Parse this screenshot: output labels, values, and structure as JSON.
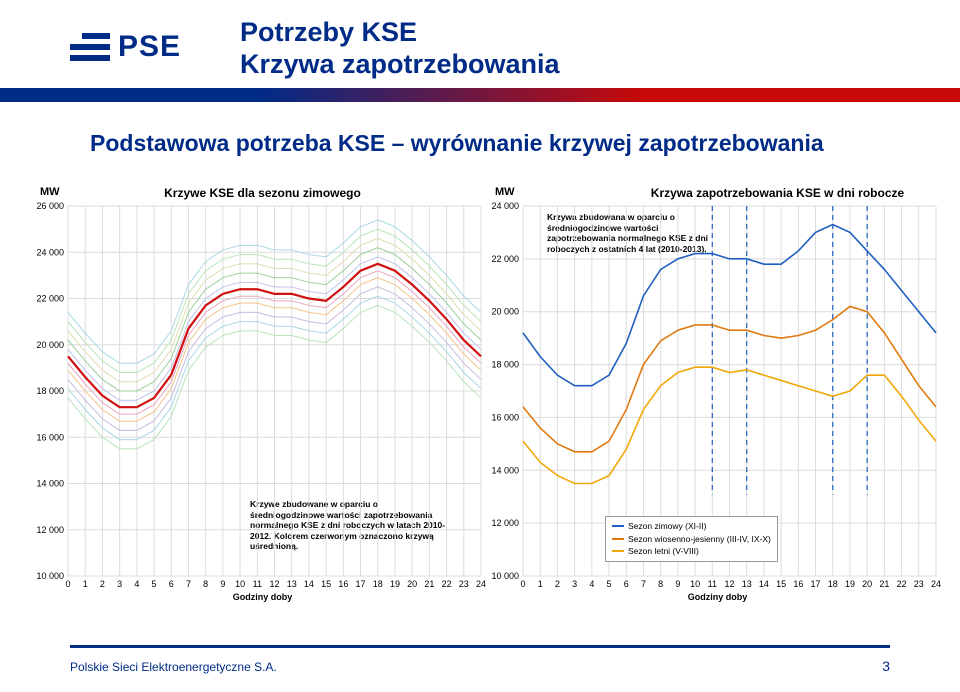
{
  "logo_text": "PSE",
  "title_line1": "Potrzeby KSE",
  "title_line2": "Krzywa zapotrzebowania",
  "subtitle": "Podstawowa potrzeba KSE – wyrównanie krzywej zapotrzebowania",
  "footer": "Polskie Sieci Elektroenergetyczne S.A.",
  "page": "3",
  "axis_label": "Godziny doby",
  "mw_label": "MW",
  "chart_left": {
    "title": "Krzywe KSE dla sezonu zimowego",
    "note": "Krzywe zbudowane w oparciu o średniogodzinowe wartości zapotrzebowania normalnego KSE z dni roboczych w latach 2010-2012.\nKolorem czerwonym oznaczono krzywą uśrednioną.",
    "type": "line",
    "ylim": [
      10000,
      26000
    ],
    "ytick_step": 2000,
    "xlim": [
      0,
      24
    ],
    "xtick_step": 1,
    "grid_color": "#dcdcdc",
    "background": "#ffffff",
    "avg_color": "#d01010",
    "avg_width": 2.2,
    "band_colors": [
      "#b9e3bb",
      "#a8d8e2",
      "#c8bbe0",
      "#f4c58a",
      "#e8a6c0",
      "#bfc3e8",
      "#9bcf9b",
      "#e0ddaf"
    ],
    "band_width": 1.0,
    "avg_series": {
      "x": [
        0,
        1,
        2,
        3,
        4,
        5,
        6,
        7,
        8,
        9,
        10,
        11,
        12,
        13,
        14,
        15,
        16,
        17,
        18,
        19,
        20,
        21,
        22,
        23,
        24
      ],
      "y": [
        19500,
        18600,
        17800,
        17300,
        17300,
        17700,
        18700,
        20700,
        21700,
        22200,
        22400,
        22400,
        22200,
        22200,
        22000,
        21900,
        22500,
        23200,
        23500,
        23200,
        22600,
        21900,
        21100,
        20200,
        19500
      ]
    },
    "band_offsets": [
      -1800,
      -1400,
      -1000,
      -600,
      -300,
      300,
      700,
      1100,
      1500,
      1900
    ]
  },
  "chart_right": {
    "title": "Krzywa zapotrzebowania KSE w dni robocze",
    "note": "Krzywa zbudowana w oparciu o średniogodzinowe wartości zapotrzebowania normalnego KSE z dni roboczych z ostatnich 4 lat (2010-2013).",
    "type": "line",
    "ylim": [
      10000,
      24000
    ],
    "ytick_step": 2000,
    "xlim": [
      0,
      24
    ],
    "xtick_step": 1,
    "grid_color": "#dcdcdc",
    "background": "#ffffff",
    "dash_hours": [
      11,
      13,
      18,
      20
    ],
    "dash_color": "#2060c0",
    "series": [
      {
        "name": "Sezon zimowy (XI-II)",
        "color": "#2060c0",
        "width": 1.6,
        "x": [
          0,
          1,
          2,
          3,
          4,
          5,
          6,
          7,
          8,
          9,
          10,
          11,
          12,
          13,
          14,
          15,
          16,
          17,
          18,
          19,
          20,
          21,
          22,
          23,
          24
        ],
        "y": [
          19200,
          18300,
          17600,
          17200,
          17200,
          17600,
          18800,
          20600,
          21600,
          22000,
          22200,
          22200,
          22000,
          22000,
          21800,
          21800,
          22300,
          23000,
          23300,
          23000,
          22300,
          21600,
          20800,
          20000,
          19200
        ]
      },
      {
        "name": "Sezon wiosenno-jesienny (III-IV, IX-X)",
        "color": "#e07a10",
        "width": 1.6,
        "x": [
          0,
          1,
          2,
          3,
          4,
          5,
          6,
          7,
          8,
          9,
          10,
          11,
          12,
          13,
          14,
          15,
          16,
          17,
          18,
          19,
          20,
          21,
          22,
          23,
          24
        ],
        "y": [
          16400,
          15600,
          15000,
          14700,
          14700,
          15100,
          16300,
          18000,
          18900,
          19300,
          19500,
          19500,
          19300,
          19300,
          19100,
          19000,
          19100,
          19300,
          19700,
          20200,
          20000,
          19200,
          18200,
          17200,
          16400
        ]
      },
      {
        "name": "Sezon letni (V-VIII)",
        "color": "#f0a808",
        "width": 1.6,
        "x": [
          0,
          1,
          2,
          3,
          4,
          5,
          6,
          7,
          8,
          9,
          10,
          11,
          12,
          13,
          14,
          15,
          16,
          17,
          18,
          19,
          20,
          21,
          22,
          23,
          24
        ],
        "y": [
          15100,
          14300,
          13800,
          13500,
          13500,
          13800,
          14800,
          16300,
          17200,
          17700,
          17900,
          17900,
          17700,
          17800,
          17600,
          17400,
          17200,
          17000,
          16800,
          17000,
          17600,
          17600,
          16800,
          15900,
          15100
        ]
      }
    ],
    "legend": {
      "items": [
        "Sezon zimowy (XI-II)",
        "Sezon wiosenno-jesienny (III-IV, IX-X)",
        "Sezon letni (V-VIII)"
      ],
      "colors": [
        "#2060c0",
        "#e07a10",
        "#f0a808"
      ]
    }
  }
}
